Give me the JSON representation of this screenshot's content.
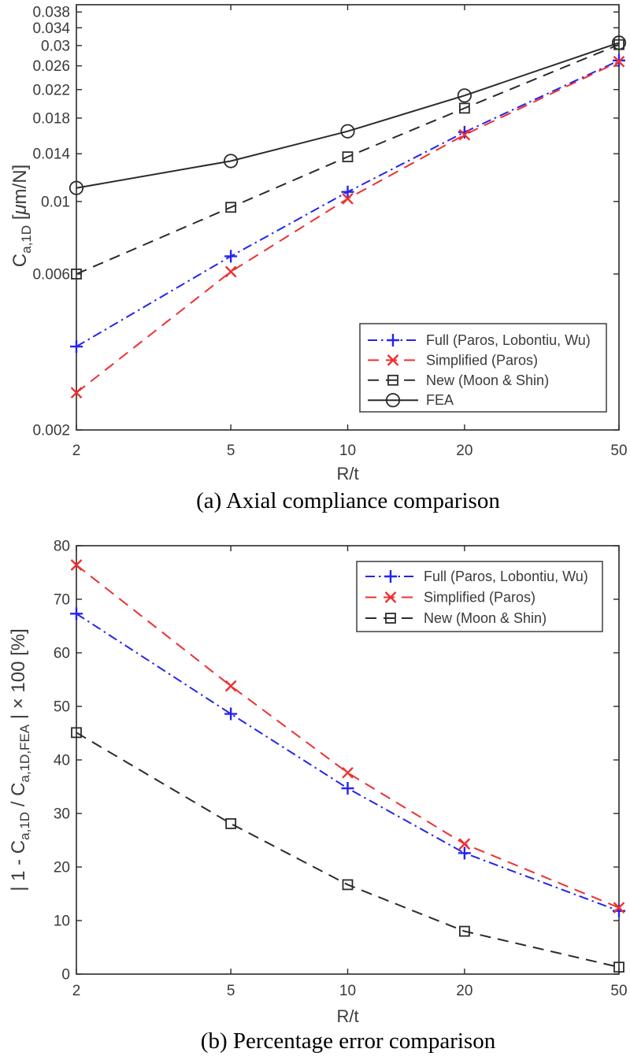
{
  "page": {
    "background": "#ffffff"
  },
  "colors": {
    "axis": "#2a2a2a",
    "tick_text": "#3a3a3a",
    "legend_border": "#3f3f3f",
    "legend_text": "#1f1f1f",
    "blue": "#2424ee",
    "red": "#ee3030",
    "black": "#2b2b2b"
  },
  "chart_data": [
    {
      "id": "axial-compliance",
      "type": "line",
      "caption": "(a) Axial compliance comparison",
      "xlabel": "R/t",
      "ylabel": "C_a,1D [μm/N]",
      "ylabel_parts": [
        {
          "text": "C"
        },
        {
          "text": "a,1D",
          "sub": true
        },
        {
          "text": " ["
        },
        {
          "text": "μ",
          "italic": true
        },
        {
          "text": "m/N]"
        }
      ],
      "x_scale": "log",
      "y_scale": "log",
      "xlim": [
        2,
        50
      ],
      "ylim": [
        0.002,
        0.04
      ],
      "grid": false,
      "x_ticks": [
        {
          "v": 2,
          "label": "2"
        },
        {
          "v": 5,
          "label": "5"
        },
        {
          "v": 10,
          "label": "10"
        },
        {
          "v": 20,
          "label": "20"
        },
        {
          "v": 50,
          "label": "50"
        }
      ],
      "y_ticks": [
        {
          "v": 0.002,
          "label": "0.002"
        },
        {
          "v": 0.006,
          "label": "0.006"
        },
        {
          "v": 0.01,
          "label": "0.01"
        },
        {
          "v": 0.014,
          "label": "0.014"
        },
        {
          "v": 0.018,
          "label": "0.018"
        },
        {
          "v": 0.022,
          "label": "0.022"
        },
        {
          "v": 0.026,
          "label": "0.026"
        },
        {
          "v": 0.03,
          "label": "0.03"
        },
        {
          "v": 0.034,
          "label": "0.034"
        },
        {
          "v": 0.038,
          "label": "0.038"
        }
      ],
      "x": [
        2,
        5,
        10,
        20,
        50
      ],
      "series": [
        {
          "id": "full",
          "name": "Full (Paros, Lobontiu, Wu)",
          "color": "#2424ee",
          "line": "dashdot",
          "marker": "plus",
          "values": [
            0.0036,
            0.0068,
            0.0107,
            0.0163,
            0.027
          ]
        },
        {
          "id": "simplified",
          "name": "Simplified (Paros)",
          "color": "#ee3030",
          "line": "dashed",
          "marker": "x",
          "values": [
            0.0026,
            0.0061,
            0.0102,
            0.016,
            0.0268
          ]
        },
        {
          "id": "new",
          "name": "New (Moon & Shin)",
          "color": "#2b2b2b",
          "line": "dashed",
          "marker": "square",
          "values": [
            0.006,
            0.0096,
            0.0137,
            0.0193,
            0.0302
          ]
        },
        {
          "id": "fea",
          "name": "FEA",
          "color": "#2b2b2b",
          "line": "solid",
          "marker": "circle",
          "values": [
            0.011,
            0.0133,
            0.0164,
            0.0211,
            0.0306
          ]
        }
      ],
      "legend_position": "bottom-right"
    },
    {
      "id": "percentage-error",
      "type": "line",
      "caption": "(b) Percentage error comparison",
      "xlabel": "R/t",
      "ylabel": "| 1 - C_a,1D / C_a,1D,FEA | × 100 [%]",
      "ylabel_parts": [
        {
          "text": "| 1 - C"
        },
        {
          "text": "a,1D",
          "sub": true
        },
        {
          "text": " / C"
        },
        {
          "text": "a,1D,FEA",
          "sub": true
        },
        {
          "text": " | × 100 [%]"
        }
      ],
      "x_scale": "log",
      "y_scale": "linear",
      "xlim": [
        2,
        50
      ],
      "ylim": [
        0,
        80
      ],
      "grid": false,
      "x_ticks": [
        {
          "v": 2,
          "label": "2"
        },
        {
          "v": 5,
          "label": "5"
        },
        {
          "v": 10,
          "label": "10"
        },
        {
          "v": 20,
          "label": "20"
        },
        {
          "v": 50,
          "label": "50"
        }
      ],
      "y_ticks": [
        {
          "v": 0,
          "label": "0"
        },
        {
          "v": 10,
          "label": "10"
        },
        {
          "v": 20,
          "label": "20"
        },
        {
          "v": 30,
          "label": "30"
        },
        {
          "v": 40,
          "label": "40"
        },
        {
          "v": 50,
          "label": "50"
        },
        {
          "v": 60,
          "label": "60"
        },
        {
          "v": 70,
          "label": "70"
        },
        {
          "v": 80,
          "label": "80"
        }
      ],
      "x": [
        2,
        5,
        10,
        20,
        50
      ],
      "series": [
        {
          "id": "full",
          "name": "Full (Paros, Lobontiu, Wu)",
          "color": "#2424ee",
          "line": "dashdot",
          "marker": "plus",
          "values": [
            67.3,
            48.6,
            34.7,
            22.6,
            11.8
          ]
        },
        {
          "id": "simplified",
          "name": "Simplified (Paros)",
          "color": "#ee3030",
          "line": "dashed",
          "marker": "x",
          "values": [
            76.4,
            53.8,
            37.6,
            24.3,
            12.4
          ]
        },
        {
          "id": "new",
          "name": "New (Moon & Shin)",
          "color": "#2b2b2b",
          "line": "dashed",
          "marker": "square",
          "values": [
            45.1,
            28.1,
            16.7,
            8.0,
            1.3
          ]
        }
      ],
      "legend_position": "top-right"
    }
  ]
}
